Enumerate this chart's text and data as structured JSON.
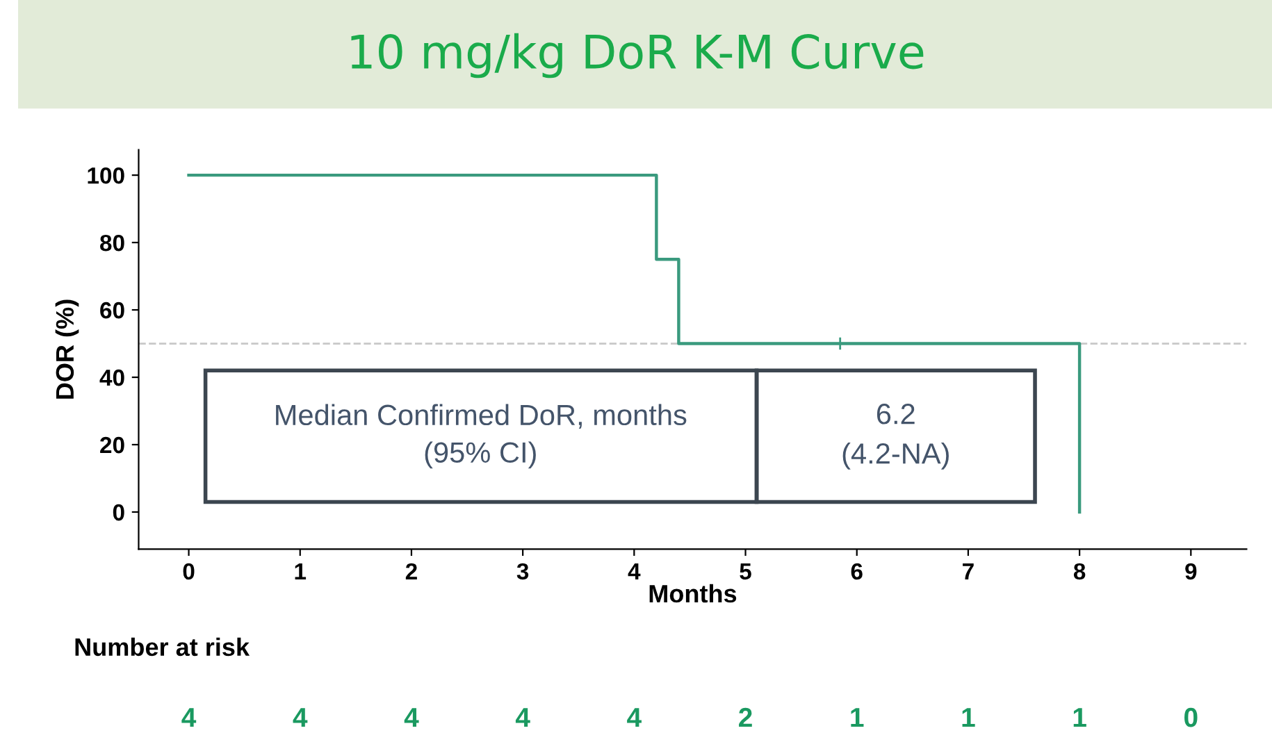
{
  "chart_data": {
    "type": "step",
    "title": "10 mg/kg DoR K-M Curve",
    "xlabel": "Months",
    "ylabel": "DOR (%)",
    "series": [
      {
        "color": "#3a9a7e",
        "x": [
          0,
          4.2,
          4.4,
          8,
          8
        ],
        "values": [
          100,
          75,
          50,
          50,
          0
        ]
      },
      {
        "type": "scatter",
        "color": "#3a9a7e",
        "marker": "cross",
        "x": [
          5.85
        ],
        "values": [
          50
        ]
      }
    ],
    "xlim": [
      -0.45,
      9.5
    ],
    "ylim": [
      -11,
      107.5
    ],
    "xticks": [
      0,
      1,
      2,
      3,
      4,
      5,
      6,
      7,
      8,
      9
    ],
    "yticks": [
      0,
      20,
      40,
      60,
      80,
      100
    ],
    "ref_lines": [
      {
        "axis": "y",
        "value": 50,
        "color": "#c8c8c8",
        "line_style": "dashed"
      }
    ],
    "annotations": [
      "Median Confirmed DoR, months\n(95% CI)",
      "6.2\n(4.2-NA)",
      "Number at risk",
      "4",
      "4",
      "4",
      "4",
      "4",
      "2",
      "1",
      "1",
      "1",
      "0"
    ],
    "grid": false,
    "legend": false
  }
}
